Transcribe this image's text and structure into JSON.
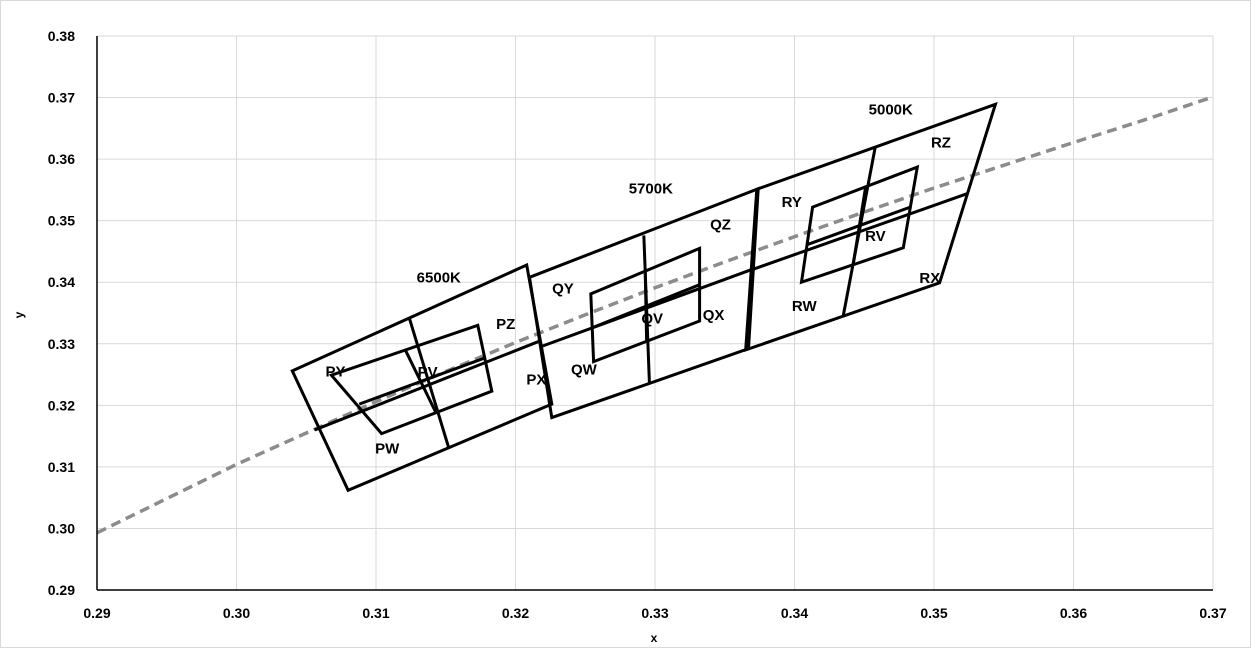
{
  "chart_data": {
    "type": "scatter",
    "title": "",
    "xlabel": "x",
    "ylabel": "y",
    "xlim": [
      0.29,
      0.37
    ],
    "ylim": [
      0.29,
      0.38
    ],
    "x_ticks": [
      "0.29",
      "0.30",
      "0.31",
      "0.32",
      "0.33",
      "0.34",
      "0.35",
      "0.36",
      "0.37"
    ],
    "y_ticks": [
      "0.29",
      "0.30",
      "0.31",
      "0.32",
      "0.33",
      "0.34",
      "0.35",
      "0.36",
      "0.37",
      "0.38"
    ],
    "grid": true,
    "colors": {
      "outline": "#000000",
      "locus": "#8c8c8c",
      "grid": "#d9d9d9"
    },
    "planckian_locus": {
      "style": "dashed",
      "x": [
        0.29,
        0.3,
        0.305,
        0.31,
        0.315,
        0.32,
        0.325,
        0.33,
        0.335,
        0.34,
        0.345,
        0.35,
        0.355,
        0.36,
        0.365,
        0.37
      ],
      "y": [
        0.2993,
        0.3104,
        0.3155,
        0.3206,
        0.3255,
        0.3302,
        0.3347,
        0.3391,
        0.3433,
        0.3474,
        0.3514,
        0.3553,
        0.359,
        0.3627,
        0.3663,
        0.3701
      ]
    },
    "outer_quadrangles": [
      {
        "name": "6500K",
        "corners": [
          [
            0.304,
            0.3256
          ],
          [
            0.3208,
            0.3428
          ],
          [
            0.3226,
            0.3202
          ],
          [
            0.308,
            0.3062
          ]
        ],
        "midline": [
          [
            0.3056,
            0.316
          ],
          [
            0.3218,
            0.3305
          ]
        ],
        "crossline": [
          [
            0.3124,
            0.3341
          ],
          [
            0.3152,
            0.3132
          ]
        ]
      },
      {
        "name": "5700K",
        "corners": [
          [
            0.321,
            0.3408
          ],
          [
            0.3374,
            0.3552
          ],
          [
            0.3367,
            0.3292
          ],
          [
            0.3226,
            0.318
          ]
        ],
        "midline": [
          [
            0.3219,
            0.3296
          ],
          [
            0.3371,
            0.3422
          ]
        ],
        "crossline": [
          [
            0.3292,
            0.3476
          ],
          [
            0.3296,
            0.3236
          ]
        ]
      },
      {
        "name": "5000K",
        "corners": [
          [
            0.3373,
            0.3551
          ],
          [
            0.3544,
            0.3689
          ],
          [
            0.3504,
            0.3399
          ],
          [
            0.3365,
            0.329
          ]
        ],
        "midline": [
          [
            0.3369,
            0.342
          ],
          [
            0.3524,
            0.3544
          ]
        ],
        "crossline": [
          [
            0.3458,
            0.3621
          ],
          [
            0.3435,
            0.3346
          ]
        ]
      }
    ],
    "inner_quadrangles": [
      {
        "name": "PV",
        "corners": [
          [
            0.3068,
            0.3249
          ],
          [
            0.3173,
            0.333
          ],
          [
            0.3183,
            0.3223
          ],
          [
            0.3104,
            0.3154
          ]
        ],
        "midline": [
          [
            0.3088,
            0.3202
          ],
          [
            0.3178,
            0.3277
          ]
        ],
        "crossline": [
          [
            0.3121,
            0.329
          ],
          [
            0.3143,
            0.3188
          ]
        ]
      },
      {
        "name": "QV",
        "corners": [
          [
            0.3254,
            0.3381
          ],
          [
            0.3332,
            0.3455
          ],
          [
            0.3332,
            0.3337
          ],
          [
            0.3256,
            0.3271
          ]
        ],
        "midline": [
          [
            0.3255,
            0.3326
          ],
          [
            0.3332,
            0.3396
          ]
        ],
        "crossline": [
          [
            0.3293,
            0.3418
          ],
          [
            0.3294,
            0.3304
          ]
        ]
      },
      {
        "name": "RV",
        "corners": [
          [
            0.3413,
            0.3522
          ],
          [
            0.3488,
            0.3587
          ],
          [
            0.3478,
            0.3456
          ],
          [
            0.3405,
            0.34
          ]
        ],
        "midline": [
          [
            0.3409,
            0.3461
          ],
          [
            0.3483,
            0.3522
          ]
        ],
        "crossline": [
          [
            0.3451,
            0.3555
          ],
          [
            0.3442,
            0.3428
          ]
        ]
      }
    ],
    "annotations": [
      {
        "text": "6500K",
        "x": 0.3145,
        "y": 0.3408
      },
      {
        "text": "5700K",
        "x": 0.3297,
        "y": 0.3552
      },
      {
        "text": "5000K",
        "x": 0.3469,
        "y": 0.3681
      },
      {
        "text": "PY",
        "x": 0.3071,
        "y": 0.3255
      },
      {
        "text": "PV",
        "x": 0.3137,
        "y": 0.3254
      },
      {
        "text": "PZ",
        "x": 0.3193,
        "y": 0.3332
      },
      {
        "text": "PX",
        "x": 0.3215,
        "y": 0.3242
      },
      {
        "text": "PW",
        "x": 0.3108,
        "y": 0.313
      },
      {
        "text": "QY",
        "x": 0.3234,
        "y": 0.339
      },
      {
        "text": "QV",
        "x": 0.3298,
        "y": 0.3341
      },
      {
        "text": "QZ",
        "x": 0.3347,
        "y": 0.3494
      },
      {
        "text": "QX",
        "x": 0.3342,
        "y": 0.3347
      },
      {
        "text": "QW",
        "x": 0.3249,
        "y": 0.3258
      },
      {
        "text": "RY",
        "x": 0.3398,
        "y": 0.353
      },
      {
        "text": "RV",
        "x": 0.3458,
        "y": 0.3475
      },
      {
        "text": "RZ",
        "x": 0.3505,
        "y": 0.3627
      },
      {
        "text": "RX",
        "x": 0.3497,
        "y": 0.3407
      },
      {
        "text": "RW",
        "x": 0.3407,
        "y": 0.3361
      }
    ]
  }
}
